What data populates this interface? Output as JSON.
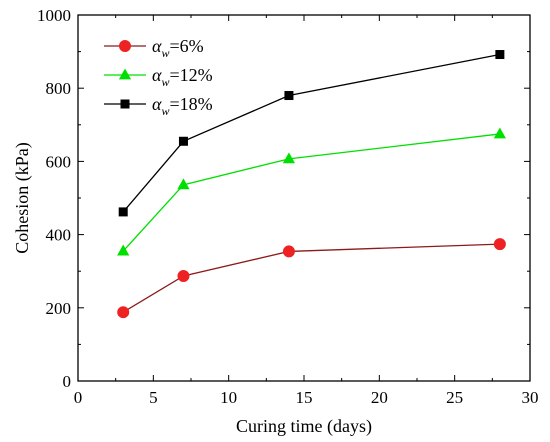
{
  "chart_data": {
    "type": "line",
    "title": "",
    "xlabel": "Curing time (days)",
    "ylabel": "Cohesion (kPa)",
    "xlim": [
      0,
      30
    ],
    "ylim": [
      0,
      1000
    ],
    "xticks": [
      "0",
      "5",
      "10",
      "15",
      "20",
      "25",
      "30"
    ],
    "yticks": [
      "0",
      "200",
      "400",
      "600",
      "800",
      "1000"
    ],
    "grid": false,
    "legend_position": "top-left",
    "x": [
      3,
      7,
      14,
      28
    ],
    "series": [
      {
        "legend_symbol": "α",
        "legend_subscript": "w",
        "legend_suffix": "=6%",
        "marker": "circle",
        "line_color": "#8B1A1A",
        "marker_color": "#EE2222",
        "values": [
          188,
          287,
          354,
          374
        ]
      },
      {
        "legend_symbol": "α",
        "legend_subscript": "w",
        "legend_suffix": "=12%",
        "marker": "triangle",
        "line_color": "#00E000",
        "marker_color": "#00E000",
        "values": [
          355,
          536,
          607,
          675
        ]
      },
      {
        "legend_symbol": "α",
        "legend_subscript": "w",
        "legend_suffix": "=18%",
        "marker": "square",
        "line_color": "#000000",
        "marker_color": "#000000",
        "values": [
          462,
          655,
          780,
          892
        ]
      }
    ]
  }
}
